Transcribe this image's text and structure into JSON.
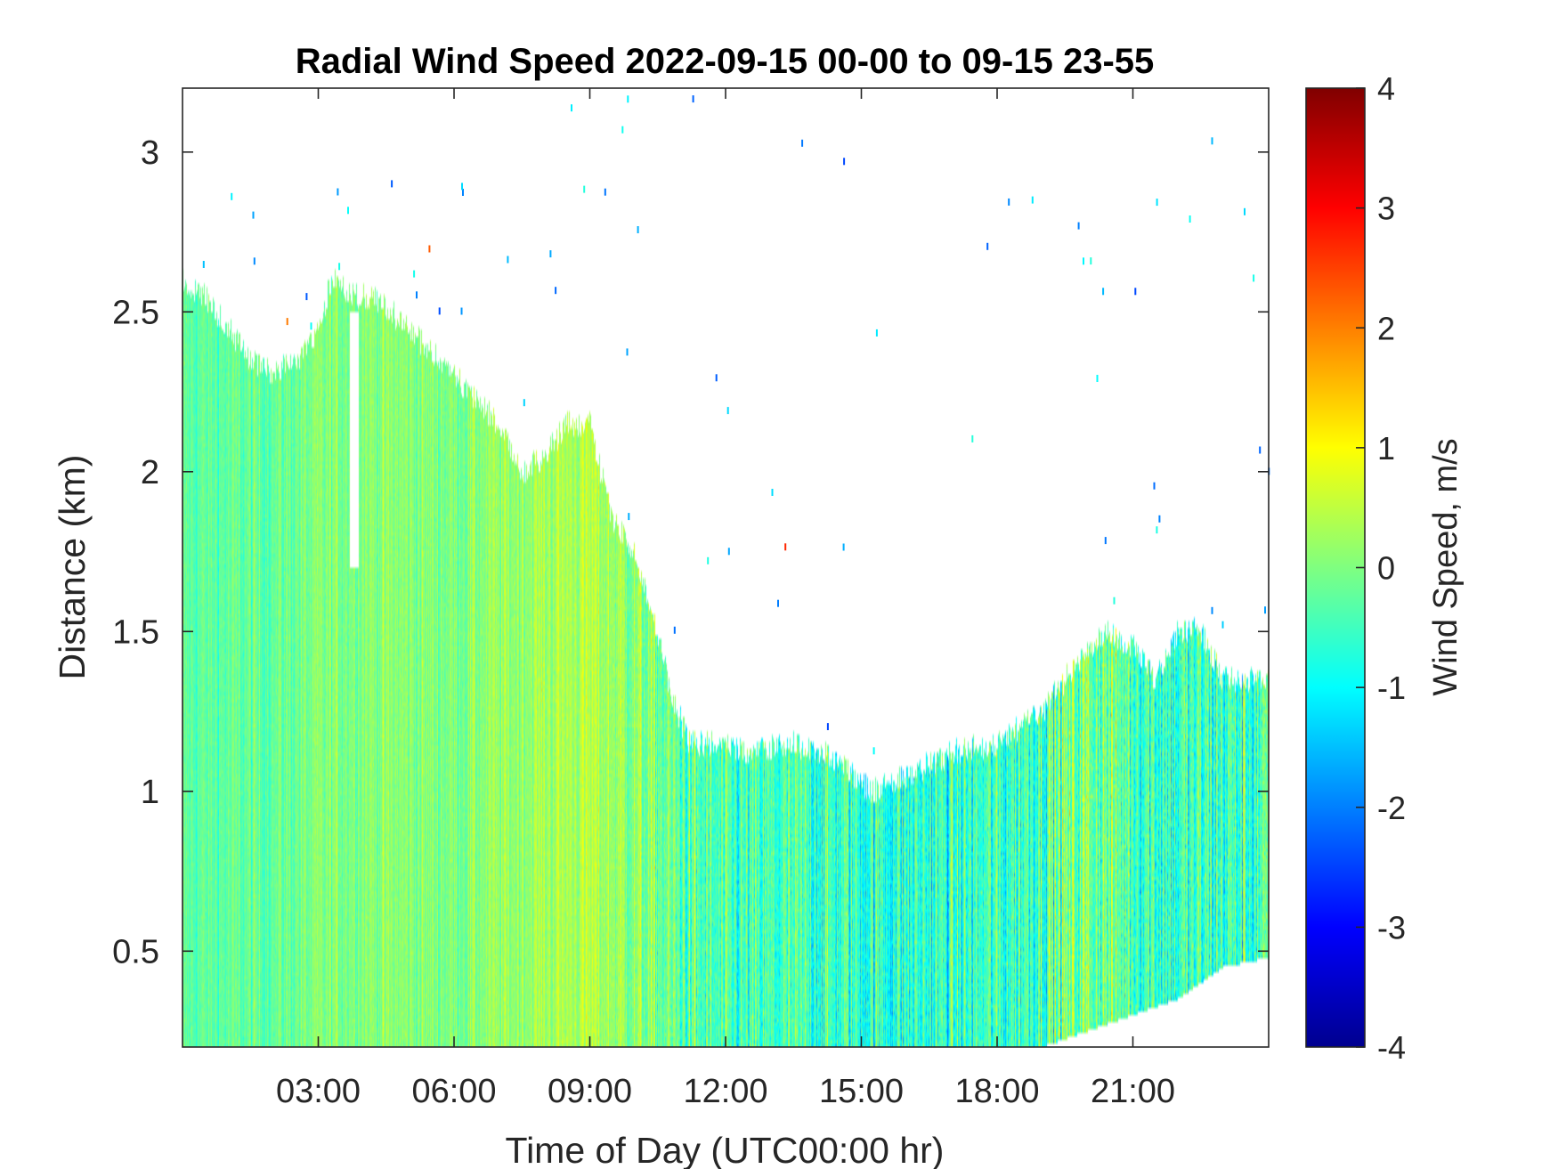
{
  "chart_data": {
    "type": "heatmap",
    "title": "Radial Wind Speed 2022-09-15 00-00 to 09-15 23-55",
    "xlabel": "Time of Day (UTC00:00 hr)",
    "ylabel": "Distance (km)",
    "colorbar_label": "Wind Speed, m/s",
    "x_unit": "hours",
    "xlim": [
      0,
      24
    ],
    "ylim": [
      0.2,
      3.2
    ],
    "clim": [
      -4,
      4
    ],
    "colormap": "jet",
    "x_ticks": [
      {
        "value": 3,
        "label": "03:00"
      },
      {
        "value": 6,
        "label": "06:00"
      },
      {
        "value": 9,
        "label": "09:00"
      },
      {
        "value": 12,
        "label": "12:00"
      },
      {
        "value": 15,
        "label": "15:00"
      },
      {
        "value": 18,
        "label": "18:00"
      },
      {
        "value": 21,
        "label": "21:00"
      }
    ],
    "y_ticks": [
      {
        "value": 0.5,
        "label": "0.5"
      },
      {
        "value": 1,
        "label": "1"
      },
      {
        "value": 1.5,
        "label": "1.5"
      },
      {
        "value": 2,
        "label": "2"
      },
      {
        "value": 2.5,
        "label": "2.5"
      },
      {
        "value": 3,
        "label": "3"
      }
    ],
    "colorbar_ticks": [
      {
        "value": 4,
        "label": "4"
      },
      {
        "value": 3,
        "label": "3"
      },
      {
        "value": 2,
        "label": "2"
      },
      {
        "value": 1,
        "label": "1"
      },
      {
        "value": 0,
        "label": "0"
      },
      {
        "value": -1,
        "label": "-1"
      },
      {
        "value": -2,
        "label": "-2"
      },
      {
        "value": -3,
        "label": "-3"
      },
      {
        "value": -4,
        "label": "-4"
      }
    ],
    "data_top_profile": [
      [
        0.0,
        2.6
      ],
      [
        0.5,
        2.55
      ],
      [
        1.0,
        2.45
      ],
      [
        1.5,
        2.35
      ],
      [
        2.0,
        2.3
      ],
      [
        2.5,
        2.35
      ],
      [
        3.0,
        2.45
      ],
      [
        3.3,
        2.6
      ],
      [
        3.8,
        2.55
      ],
      [
        4.2,
        2.55
      ],
      [
        5.0,
        2.45
      ],
      [
        6.0,
        2.3
      ],
      [
        7.0,
        2.15
      ],
      [
        7.5,
        2.0
      ],
      [
        8.0,
        2.05
      ],
      [
        8.5,
        2.15
      ],
      [
        9.0,
        2.15
      ],
      [
        9.5,
        1.85
      ],
      [
        10.0,
        1.75
      ],
      [
        10.5,
        1.5
      ],
      [
        10.8,
        1.3
      ],
      [
        11.2,
        1.15
      ],
      [
        11.8,
        1.15
      ],
      [
        12.5,
        1.12
      ],
      [
        13.5,
        1.15
      ],
      [
        14.5,
        1.1
      ],
      [
        15.2,
        1.0
      ],
      [
        16.0,
        1.05
      ],
      [
        17.0,
        1.12
      ],
      [
        18.0,
        1.15
      ],
      [
        19.0,
        1.25
      ],
      [
        20.0,
        1.45
      ],
      [
        20.5,
        1.5
      ],
      [
        21.0,
        1.45
      ],
      [
        21.5,
        1.35
      ],
      [
        22.0,
        1.5
      ],
      [
        22.5,
        1.5
      ],
      [
        23.0,
        1.35
      ],
      [
        24.0,
        1.35
      ]
    ],
    "data_bottom_profile": [
      [
        0.0,
        0.2
      ],
      [
        19.0,
        0.2
      ],
      [
        20.0,
        0.25
      ],
      [
        21.0,
        0.3
      ],
      [
        22.0,
        0.35
      ],
      [
        23.0,
        0.45
      ],
      [
        24.0,
        0.48
      ]
    ],
    "data_gaps": [
      {
        "x": [
          3.7,
          3.9
        ],
        "y": [
          1.7,
          2.5
        ]
      }
    ],
    "mean_wind_profile": [
      [
        0,
        -0.3
      ],
      [
        2,
        -0.2
      ],
      [
        4,
        0.1
      ],
      [
        6,
        0.0
      ],
      [
        8,
        0.3
      ],
      [
        9,
        0.4
      ],
      [
        10,
        0.1
      ],
      [
        11,
        -0.3
      ],
      [
        12,
        -0.6
      ],
      [
        14,
        -0.5
      ],
      [
        16,
        -0.7
      ],
      [
        18,
        -0.6
      ],
      [
        20,
        0.0
      ],
      [
        22,
        -0.6
      ],
      [
        24,
        -0.5
      ]
    ],
    "wind_variability": [
      [
        0,
        0.45
      ],
      [
        9,
        0.5
      ],
      [
        11,
        0.9
      ],
      [
        24,
        1.15
      ]
    ]
  }
}
